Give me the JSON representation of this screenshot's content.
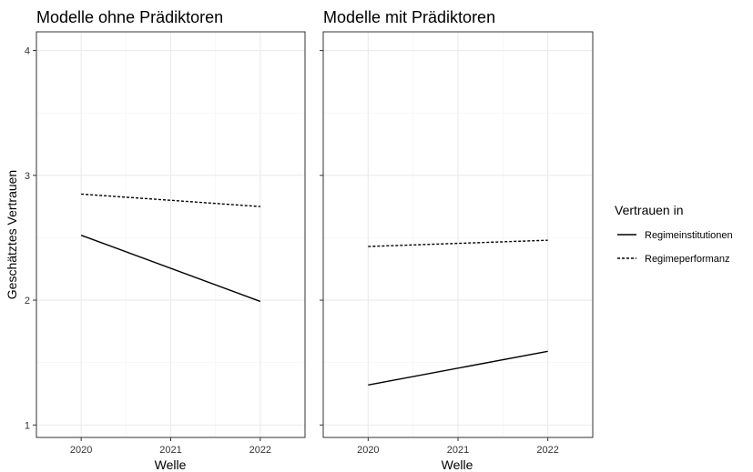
{
  "chart_data": {
    "type": "line",
    "ylabel": "Geschätztes Vertrauen",
    "xlabel": "Welle",
    "x_ticks": [
      "2020",
      "2021",
      "2022"
    ],
    "y_ticks": [
      "1",
      "2",
      "3",
      "4"
    ],
    "xlim": [
      2019.5,
      2022.5
    ],
    "ylim": [
      0.9,
      4.15
    ],
    "grid": true,
    "legend": {
      "title": "Vertrauen in",
      "position": "right",
      "entries": [
        {
          "name": "Regimeinstitutionen",
          "linetype": "solid"
        },
        {
          "name": "Regimeperformanz",
          "linetype": "dashed"
        }
      ]
    },
    "panels": [
      {
        "title": "Modelle ohne Prädiktoren",
        "series": [
          {
            "name": "Regimeinstitutionen",
            "x": [
              2020,
              2022
            ],
            "y": [
              2.52,
              1.99
            ]
          },
          {
            "name": "Regimeperformanz",
            "x": [
              2020,
              2022
            ],
            "y": [
              2.85,
              2.75
            ]
          }
        ]
      },
      {
        "title": "Modelle mit Prädiktoren",
        "series": [
          {
            "name": "Regimeinstitutionen",
            "x": [
              2020,
              2022
            ],
            "y": [
              1.32,
              1.59
            ]
          },
          {
            "name": "Regimeperformanz",
            "x": [
              2020,
              2022
            ],
            "y": [
              2.43,
              2.48
            ]
          }
        ]
      }
    ]
  }
}
